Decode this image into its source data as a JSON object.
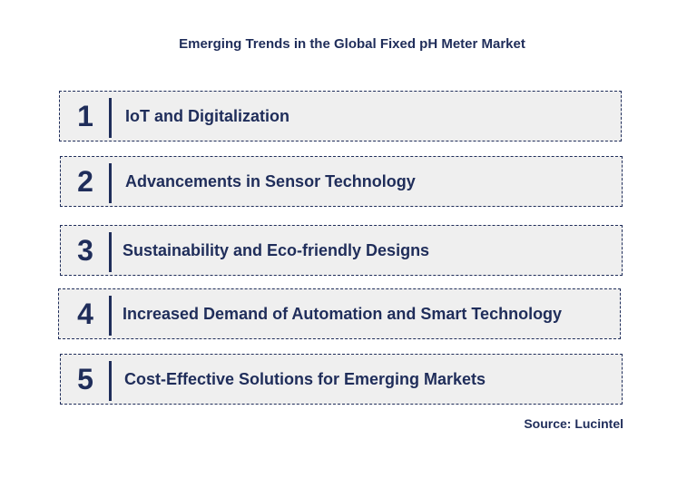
{
  "title": "Emerging Trends in the Global Fixed pH Meter Market",
  "trends": [
    {
      "number": "1",
      "label": "IoT and Digitalization"
    },
    {
      "number": "2",
      "label": "Advancements in Sensor Technology"
    },
    {
      "number": "3",
      "label": "Sustainability and Eco-friendly Designs"
    },
    {
      "number": "4",
      "label": "Increased Demand of Automation and Smart Technology"
    },
    {
      "number": "5",
      "label": "Cost-Effective Solutions for Emerging Markets"
    }
  ],
  "source": "Source: Lucintel",
  "colors": {
    "accent": "#1f2d5a",
    "box_fill": "#efefef"
  }
}
